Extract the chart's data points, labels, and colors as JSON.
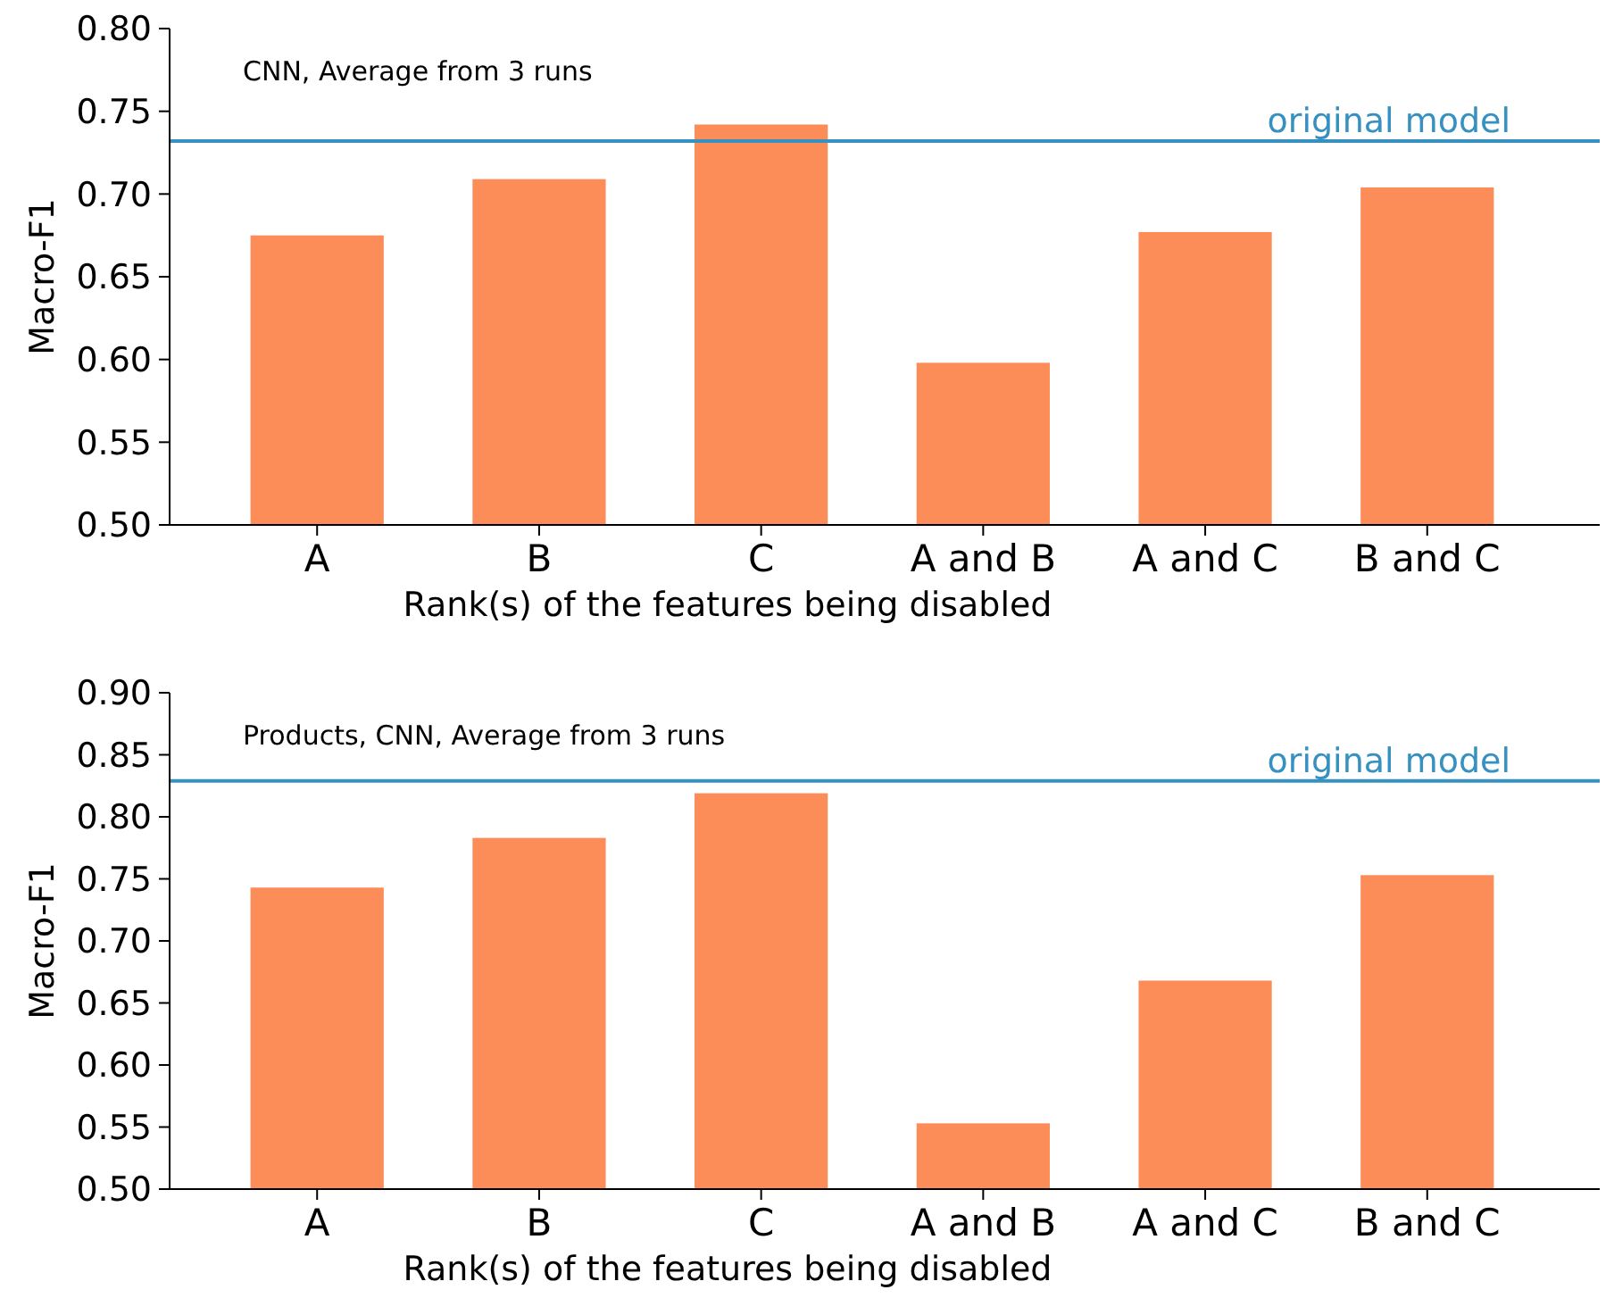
{
  "chart_data": [
    {
      "type": "bar",
      "categories": [
        "A",
        "B",
        "C",
        "A and B",
        "A and C",
        "B and C"
      ],
      "values": [
        0.675,
        0.709,
        0.742,
        0.598,
        0.677,
        0.704
      ],
      "color": "#fc8d59",
      "xlabel": "Rank(s) of the features being disabled",
      "ylabel": "Macro-F1",
      "ylim": [
        0.5,
        0.8
      ],
      "yticks": [
        {
          "value": 0.5,
          "label": "0.50"
        },
        {
          "value": 0.55,
          "label": "0.55"
        },
        {
          "value": 0.6,
          "label": "0.60"
        },
        {
          "value": 0.65,
          "label": "0.65"
        },
        {
          "value": 0.7,
          "label": "0.70"
        },
        {
          "value": 0.75,
          "label": "0.75"
        },
        {
          "value": 0.8,
          "label": "0.80"
        }
      ],
      "annotations": [
        "CNN, Average from 3 runs"
      ],
      "ref_lines": [
        {
          "axis": "y",
          "value": 0.732,
          "label": "original model",
          "color": "#3690c0"
        }
      ],
      "grid": false
    },
    {
      "type": "bar",
      "categories": [
        "A",
        "B",
        "C",
        "A and B",
        "A and C",
        "B and C"
      ],
      "values": [
        0.743,
        0.783,
        0.819,
        0.553,
        0.668,
        0.753
      ],
      "color": "#fc8d59",
      "xlabel": "Rank(s) of the features being disabled",
      "ylabel": "Macro-F1",
      "ylim": [
        0.5,
        0.9
      ],
      "yticks": [
        {
          "value": 0.5,
          "label": "0.50"
        },
        {
          "value": 0.55,
          "label": "0.55"
        },
        {
          "value": 0.6,
          "label": "0.60"
        },
        {
          "value": 0.65,
          "label": "0.65"
        },
        {
          "value": 0.7,
          "label": "0.70"
        },
        {
          "value": 0.75,
          "label": "0.75"
        },
        {
          "value": 0.8,
          "label": "0.80"
        },
        {
          "value": 0.85,
          "label": "0.85"
        },
        {
          "value": 0.9,
          "label": "0.90"
        }
      ],
      "annotations": [
        "Products, CNN, Average from 3 runs"
      ],
      "ref_lines": [
        {
          "axis": "y",
          "value": 0.829,
          "label": "original model",
          "color": "#3690c0"
        }
      ],
      "grid": false
    }
  ]
}
